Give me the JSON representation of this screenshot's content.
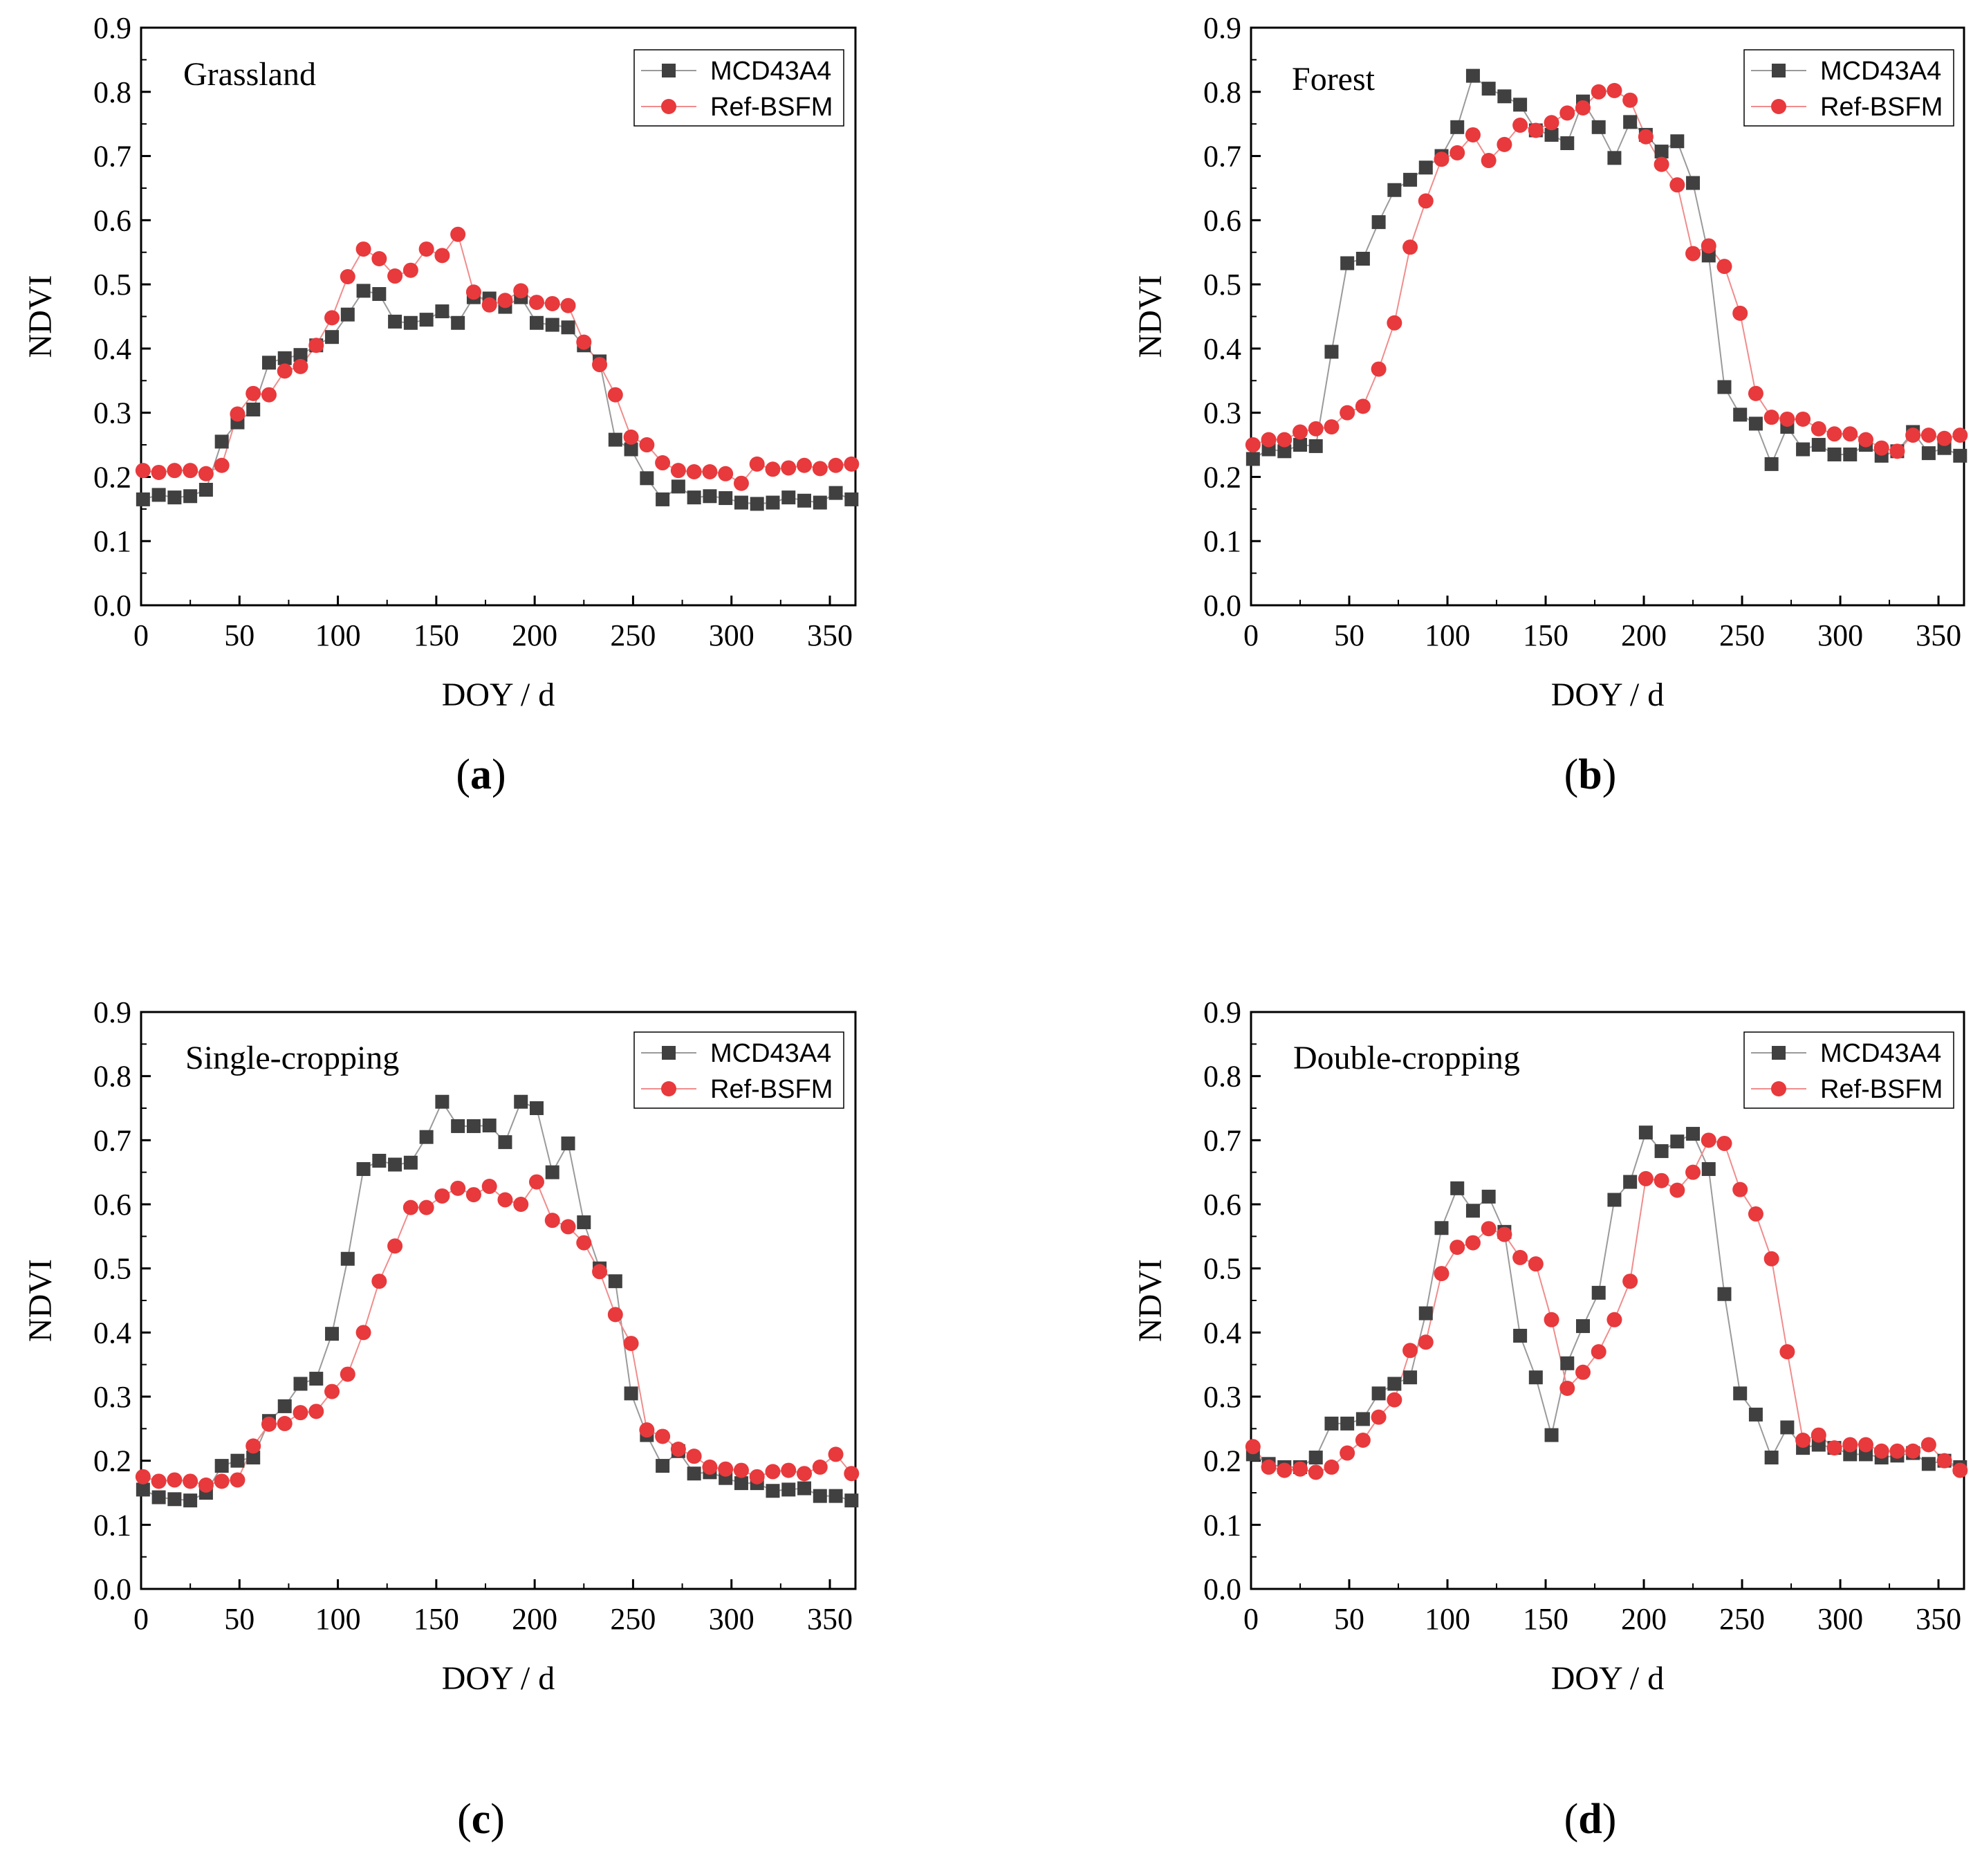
{
  "colors": {
    "mcd": "#404040",
    "mcd_line": "#9a9a9a",
    "ref": "#e8393c",
    "ref_line": "#f08c8c"
  },
  "legend": {
    "mcd": "MCD43A4",
    "ref": "Ref-BSFM",
    "placement": "top-right"
  },
  "chart_data": [
    {
      "type": "line",
      "panel": "a",
      "title": "Grassland",
      "xlabel": "DOY / d",
      "ylabel": "NDVI",
      "xlim": [
        0,
        363
      ],
      "ylim": [
        0,
        0.9
      ],
      "xticks": [
        "0",
        "50",
        "100",
        "150",
        "200",
        "250",
        "300",
        "350"
      ],
      "yticks": [
        "0.0",
        "0.1",
        "0.2",
        "0.3",
        "0.4",
        "0.5",
        "0.6",
        "0.7",
        "0.8",
        "0.9"
      ],
      "x": [
        1,
        9,
        17,
        25,
        33,
        41,
        49,
        57,
        65,
        73,
        81,
        89,
        97,
        105,
        113,
        121,
        129,
        137,
        145,
        153,
        161,
        169,
        177,
        185,
        193,
        201,
        209,
        217,
        225,
        233,
        241,
        249,
        257,
        265,
        273,
        281,
        289,
        297,
        305,
        313,
        321,
        329,
        337,
        345,
        353,
        361
      ],
      "series": [
        {
          "name": "MCD43A4",
          "values": [
            0.165,
            0.172,
            0.168,
            0.17,
            0.18,
            0.255,
            0.285,
            0.305,
            0.378,
            0.385,
            0.39,
            0.405,
            0.418,
            0.453,
            0.49,
            0.485,
            0.442,
            0.44,
            0.445,
            0.458,
            0.44,
            0.48,
            0.478,
            0.465,
            0.48,
            0.44,
            0.437,
            0.433,
            0.405,
            0.38,
            0.258,
            0.243,
            0.198,
            0.165,
            0.185,
            0.168,
            0.17,
            0.167,
            0.16,
            0.158,
            0.16,
            0.168,
            0.163,
            0.16,
            0.175,
            0.165
          ]
        },
        {
          "name": "Ref-BSFM",
          "values": [
            0.21,
            0.207,
            0.21,
            0.21,
            0.205,
            0.218,
            0.298,
            0.33,
            0.328,
            0.365,
            0.372,
            0.405,
            0.448,
            0.512,
            0.555,
            0.54,
            0.513,
            0.522,
            0.555,
            0.545,
            0.578,
            0.488,
            0.468,
            0.475,
            0.49,
            0.472,
            0.47,
            0.467,
            0.41,
            0.375,
            0.328,
            0.262,
            0.25,
            0.222,
            0.21,
            0.208,
            0.208,
            0.205,
            0.19,
            0.22,
            0.212,
            0.214,
            0.218,
            0.213,
            0.218,
            0.22
          ]
        }
      ]
    },
    {
      "type": "line",
      "panel": "b",
      "title": "Forest",
      "xlabel": "DOY / d",
      "ylabel": "NDVI",
      "xlim": [
        0,
        363
      ],
      "ylim": [
        0,
        0.9
      ],
      "xticks": [
        "0",
        "50",
        "100",
        "150",
        "200",
        "250",
        "300",
        "350"
      ],
      "yticks": [
        "0.0",
        "0.1",
        "0.2",
        "0.3",
        "0.4",
        "0.5",
        "0.6",
        "0.7",
        "0.8",
        "0.9"
      ],
      "x": [
        1,
        9,
        17,
        25,
        33,
        41,
        49,
        57,
        65,
        73,
        81,
        89,
        97,
        105,
        113,
        121,
        129,
        137,
        145,
        153,
        161,
        169,
        177,
        185,
        193,
        201,
        209,
        217,
        225,
        233,
        241,
        249,
        257,
        265,
        273,
        281,
        289,
        297,
        305,
        313,
        321,
        329,
        337,
        345,
        353,
        361
      ],
      "series": [
        {
          "name": "MCD43A4",
          "values": [
            0.228,
            0.243,
            0.24,
            0.25,
            0.248,
            0.395,
            0.533,
            0.54,
            0.597,
            0.647,
            0.663,
            0.682,
            0.7,
            0.745,
            0.825,
            0.805,
            0.793,
            0.78,
            0.74,
            0.733,
            0.72,
            0.785,
            0.745,
            0.697,
            0.753,
            0.733,
            0.707,
            0.723,
            0.658,
            0.545,
            0.34,
            0.297,
            0.283,
            0.22,
            0.278,
            0.243,
            0.25,
            0.235,
            0.235,
            0.25,
            0.233,
            0.24,
            0.27,
            0.237,
            0.245,
            0.233
          ]
        },
        {
          "name": "Ref-BSFM",
          "values": [
            0.25,
            0.258,
            0.258,
            0.27,
            0.275,
            0.278,
            0.3,
            0.31,
            0.368,
            0.44,
            0.558,
            0.63,
            0.695,
            0.705,
            0.733,
            0.693,
            0.718,
            0.748,
            0.74,
            0.752,
            0.767,
            0.775,
            0.8,
            0.802,
            0.787,
            0.73,
            0.687,
            0.655,
            0.548,
            0.56,
            0.528,
            0.455,
            0.33,
            0.293,
            0.29,
            0.29,
            0.275,
            0.267,
            0.267,
            0.258,
            0.245,
            0.24,
            0.265,
            0.265,
            0.26,
            0.265
          ]
        }
      ]
    },
    {
      "type": "line",
      "panel": "c",
      "title": "Single-cropping",
      "xlabel": "DOY / d",
      "ylabel": "NDVI",
      "xlim": [
        0,
        363
      ],
      "ylim": [
        0,
        0.9
      ],
      "xticks": [
        "0",
        "50",
        "100",
        "150",
        "200",
        "250",
        "300",
        "350"
      ],
      "yticks": [
        "0.0",
        "0.1",
        "0.2",
        "0.3",
        "0.4",
        "0.5",
        "0.6",
        "0.7",
        "0.8",
        "0.9"
      ],
      "x": [
        1,
        9,
        17,
        25,
        33,
        41,
        49,
        57,
        65,
        73,
        81,
        89,
        97,
        105,
        113,
        121,
        129,
        137,
        145,
        153,
        161,
        169,
        177,
        185,
        193,
        201,
        209,
        217,
        225,
        233,
        241,
        249,
        257,
        265,
        273,
        281,
        289,
        297,
        305,
        313,
        321,
        329,
        337,
        345,
        353,
        361
      ],
      "series": [
        {
          "name": "MCD43A4",
          "values": [
            0.155,
            0.143,
            0.14,
            0.138,
            0.15,
            0.192,
            0.2,
            0.205,
            0.262,
            0.285,
            0.32,
            0.328,
            0.398,
            0.515,
            0.655,
            0.668,
            0.662,
            0.665,
            0.705,
            0.76,
            0.722,
            0.722,
            0.723,
            0.697,
            0.76,
            0.75,
            0.65,
            0.695,
            0.572,
            0.5,
            0.48,
            0.305,
            0.24,
            0.192,
            0.215,
            0.18,
            0.182,
            0.173,
            0.165,
            0.165,
            0.153,
            0.155,
            0.157,
            0.145,
            0.145,
            0.138
          ]
        },
        {
          "name": "Ref-BSFM",
          "values": [
            0.175,
            0.168,
            0.17,
            0.168,
            0.162,
            0.168,
            0.17,
            0.223,
            0.257,
            0.258,
            0.275,
            0.277,
            0.308,
            0.335,
            0.4,
            0.48,
            0.535,
            0.595,
            0.595,
            0.613,
            0.625,
            0.615,
            0.628,
            0.607,
            0.6,
            0.635,
            0.575,
            0.565,
            0.54,
            0.495,
            0.428,
            0.383,
            0.248,
            0.238,
            0.218,
            0.207,
            0.19,
            0.187,
            0.185,
            0.175,
            0.183,
            0.185,
            0.18,
            0.19,
            0.21,
            0.18
          ]
        }
      ]
    },
    {
      "type": "line",
      "panel": "d",
      "title": "Double-cropping",
      "xlabel": "DOY / d",
      "ylabel": "NDVI",
      "xlim": [
        0,
        363
      ],
      "ylim": [
        0,
        0.9
      ],
      "xticks": [
        "0",
        "50",
        "100",
        "150",
        "200",
        "250",
        "300",
        "350"
      ],
      "yticks": [
        "0.0",
        "0.1",
        "0.2",
        "0.3",
        "0.4",
        "0.5",
        "0.6",
        "0.7",
        "0.8",
        "0.9"
      ],
      "x": [
        1,
        9,
        17,
        25,
        33,
        41,
        49,
        57,
        65,
        73,
        81,
        89,
        97,
        105,
        113,
        121,
        129,
        137,
        145,
        153,
        161,
        169,
        177,
        185,
        193,
        201,
        209,
        217,
        225,
        233,
        241,
        249,
        257,
        265,
        273,
        281,
        289,
        297,
        305,
        313,
        321,
        329,
        337,
        345,
        353,
        361
      ],
      "series": [
        {
          "name": "MCD43A4",
          "values": [
            0.21,
            0.195,
            0.19,
            0.19,
            0.205,
            0.258,
            0.258,
            0.265,
            0.305,
            0.32,
            0.33,
            0.43,
            0.563,
            0.625,
            0.59,
            0.612,
            0.557,
            0.395,
            0.33,
            0.24,
            0.352,
            0.41,
            0.462,
            0.607,
            0.635,
            0.712,
            0.683,
            0.698,
            0.71,
            0.655,
            0.46,
            0.305,
            0.272,
            0.205,
            0.252,
            0.22,
            0.225,
            0.22,
            0.21,
            0.21,
            0.205,
            0.208,
            0.212,
            0.195,
            0.2,
            0.19
          ]
        },
        {
          "name": "Ref-BSFM",
          "values": [
            0.222,
            0.19,
            0.185,
            0.187,
            0.182,
            0.19,
            0.212,
            0.232,
            0.268,
            0.295,
            0.372,
            0.385,
            0.492,
            0.533,
            0.54,
            0.562,
            0.553,
            0.517,
            0.507,
            0.42,
            0.313,
            0.338,
            0.37,
            0.42,
            0.48,
            0.64,
            0.637,
            0.622,
            0.65,
            0.7,
            0.695,
            0.623,
            0.585,
            0.515,
            0.37,
            0.232,
            0.24,
            0.22,
            0.225,
            0.225,
            0.215,
            0.215,
            0.215,
            0.225,
            0.2,
            0.185
          ]
        }
      ]
    }
  ]
}
